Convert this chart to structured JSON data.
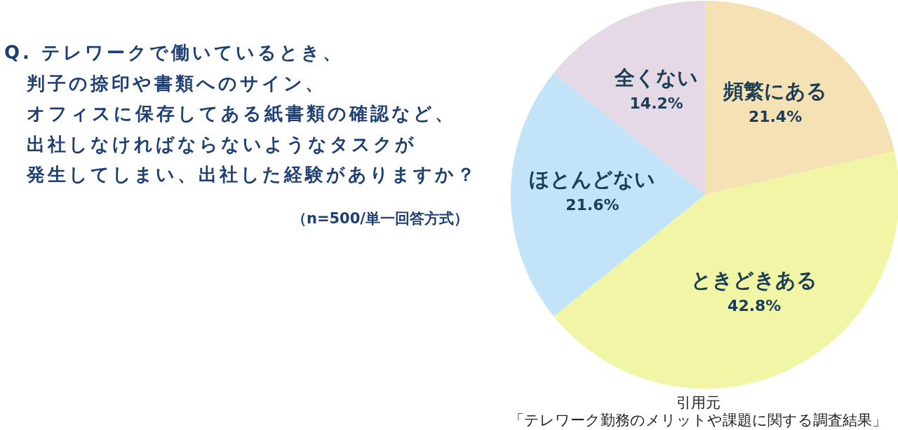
{
  "chart_data": {
    "type": "pie",
    "title": "Q. テレワークで働いているとき、判子の捺印や書類へのサイン、オフィスに保存してある紙書類の確認など、出社しなければならないようなタスクが発生してしまい、出社した経験がありますか？",
    "subtitle": "（n=500/単一回答方式）",
    "categories": [
      "頻繁にある",
      "ときどきある",
      "ほとんどない",
      "全くない"
    ],
    "values": [
      21.4,
      42.8,
      21.6,
      14.2
    ],
    "value_labels": [
      "21.4%",
      "42.8%",
      "21.6%",
      "14.2%"
    ],
    "colors": [
      "#f5e1b3",
      "#f1f6a6",
      "#c2e3f8",
      "#e5d9e6"
    ],
    "annotations": [
      "引用元「テレワーク勤務のメリットや課題に関する調査結果」"
    ]
  }
}
